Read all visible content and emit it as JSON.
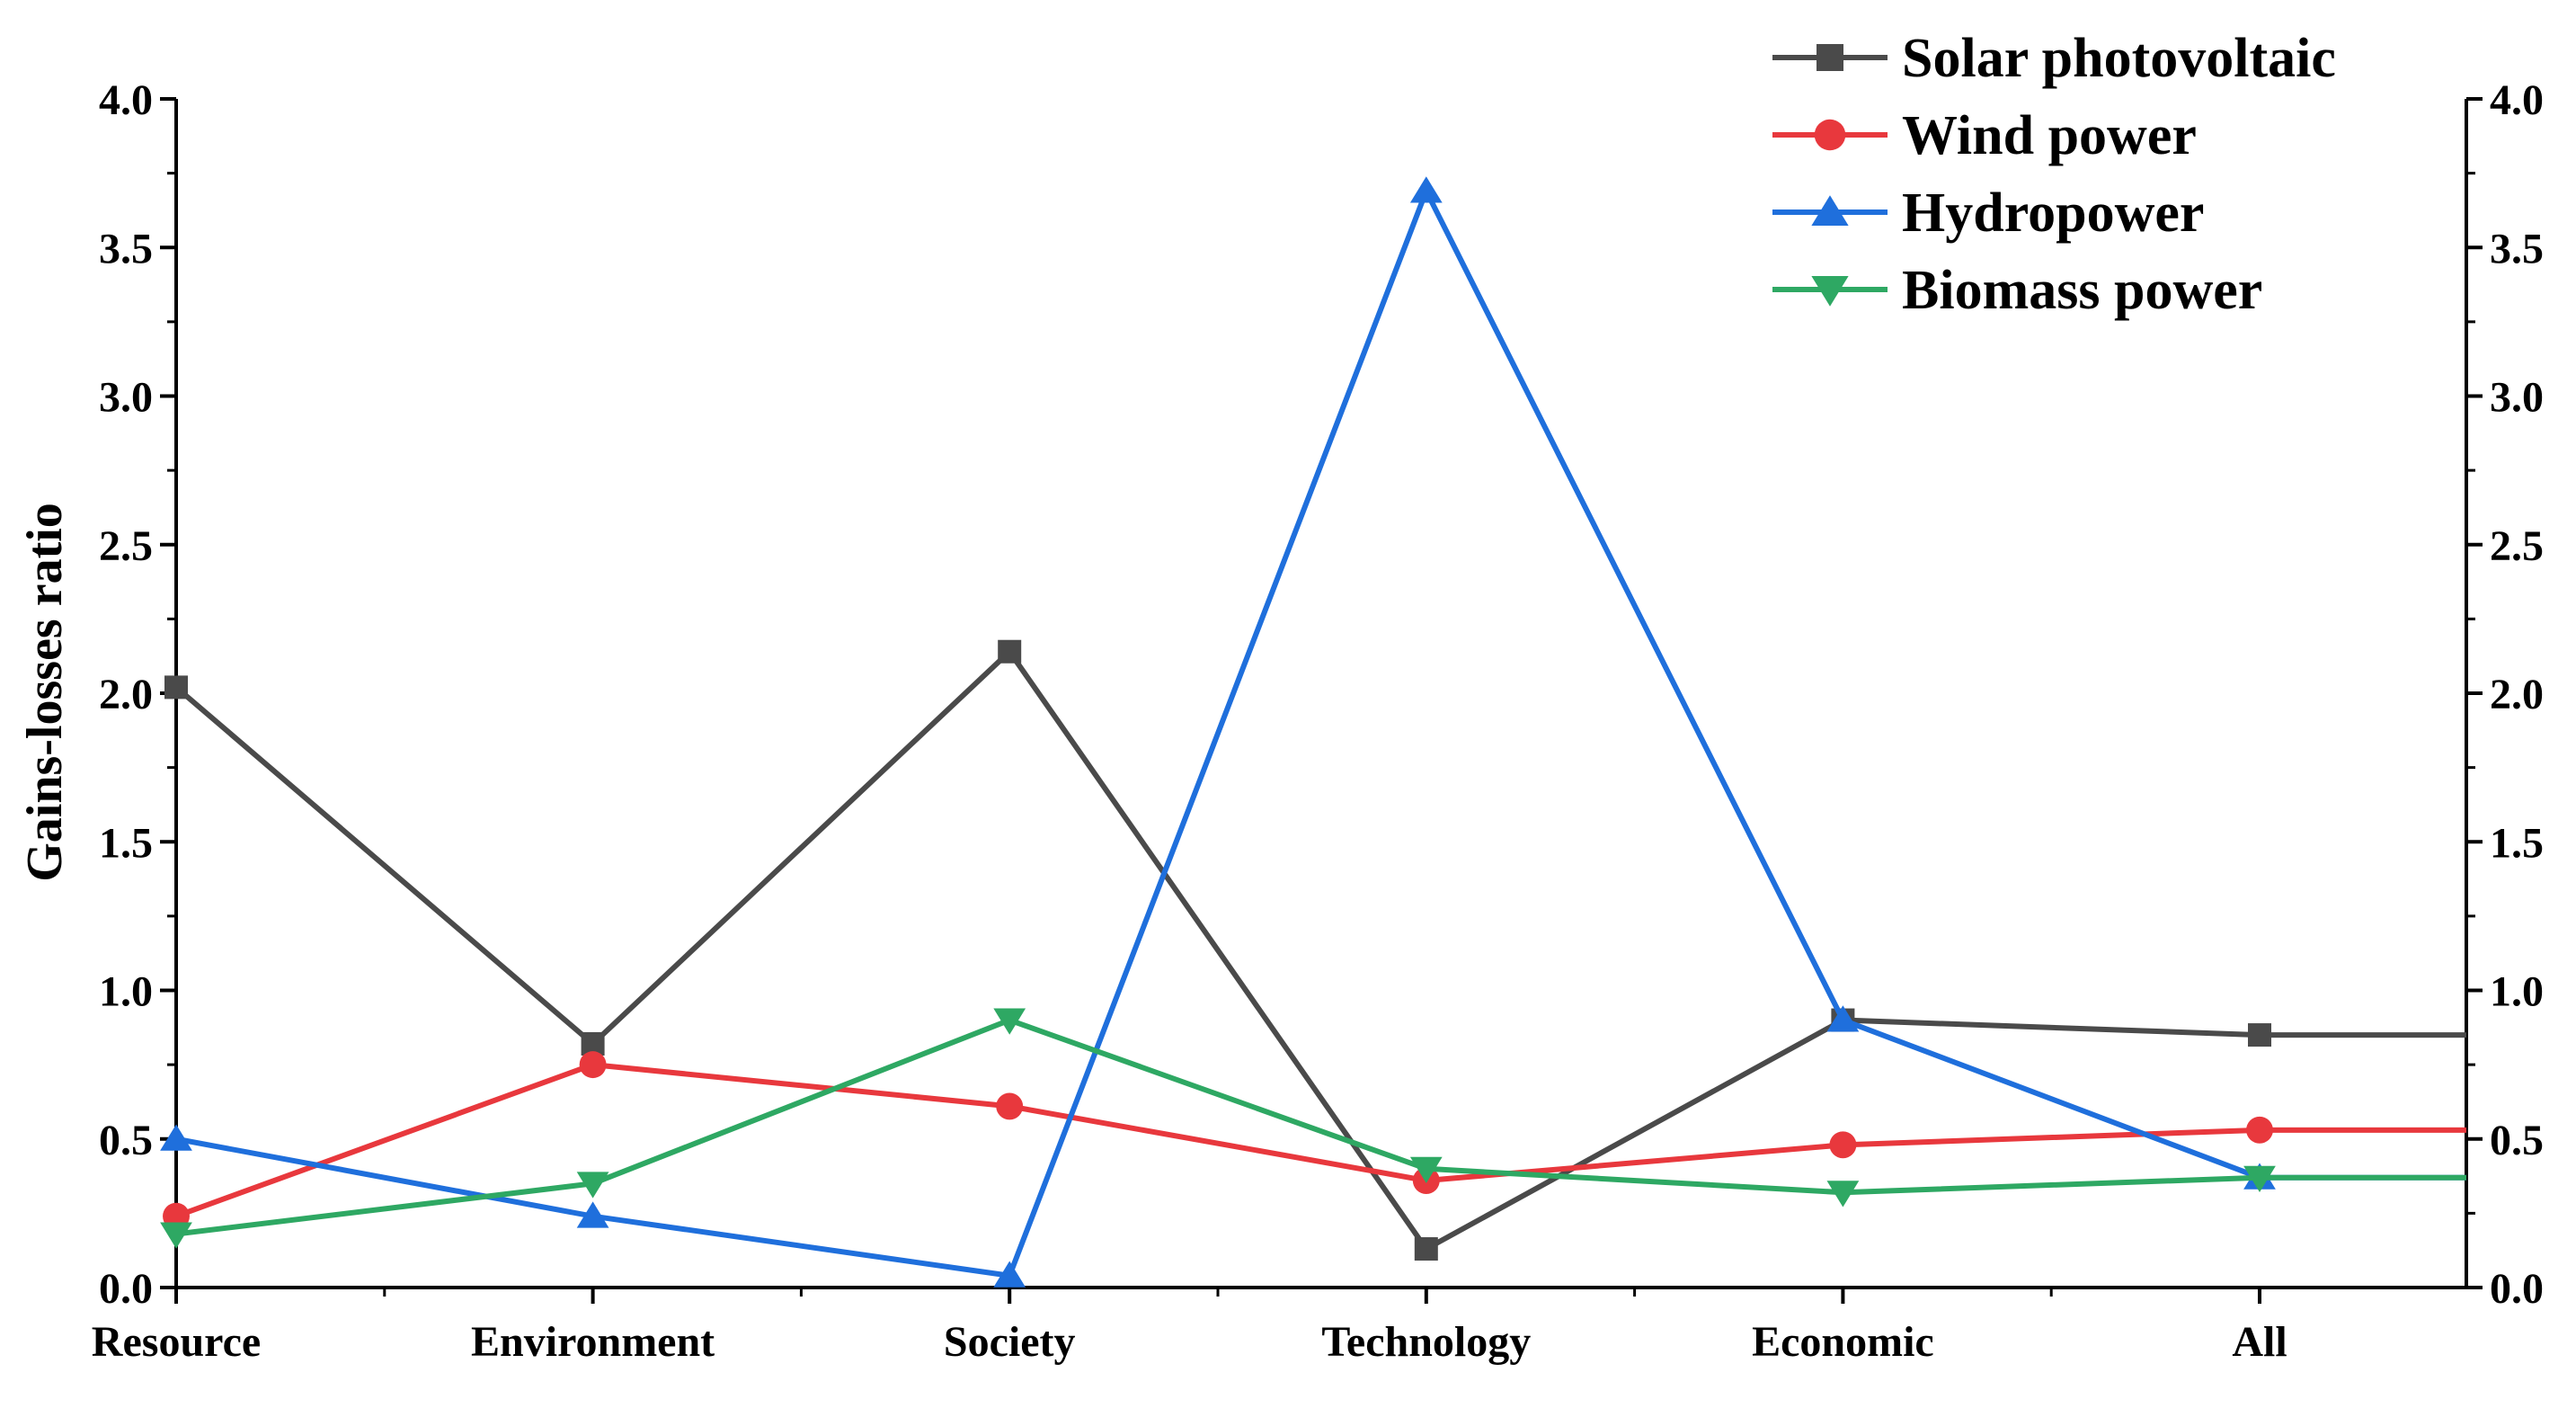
{
  "chart_data": {
    "type": "line",
    "title": "",
    "xlabel": "",
    "ylabel": "Gains-losses ratio",
    "ylim": [
      0,
      4
    ],
    "yticks": [
      "0.0",
      "0.5",
      "1.0",
      "1.5",
      "2.0",
      "2.5",
      "3.0",
      "3.5",
      "4.0"
    ],
    "y_right_axis": true,
    "grid": false,
    "legend_position": "top-right",
    "categories": [
      "Resource",
      "Environment",
      "Society",
      "Technology",
      "Economic",
      "All"
    ],
    "series": [
      {
        "name": "Solar photovoltaic",
        "color": "#4a4a4a",
        "marker": "square",
        "values": [
          2.02,
          0.82,
          2.14,
          0.13,
          0.9,
          0.85
        ],
        "tail": 0.85
      },
      {
        "name": "Wind power",
        "color": "#e8383d",
        "marker": "circle",
        "values": [
          0.24,
          0.75,
          0.61,
          0.36,
          0.48,
          0.53
        ],
        "tail": 0.53
      },
      {
        "name": "Hydropower",
        "color": "#1f6fdc",
        "marker": "triangle-up",
        "values": [
          0.5,
          0.24,
          0.04,
          3.69,
          0.9,
          0.37
        ],
        "tail": 0.37
      },
      {
        "name": "Biomass power",
        "color": "#2ea863",
        "marker": "triangle-down",
        "values": [
          0.18,
          0.35,
          0.9,
          0.4,
          0.32,
          0.37
        ],
        "tail": 0.37
      }
    ]
  }
}
